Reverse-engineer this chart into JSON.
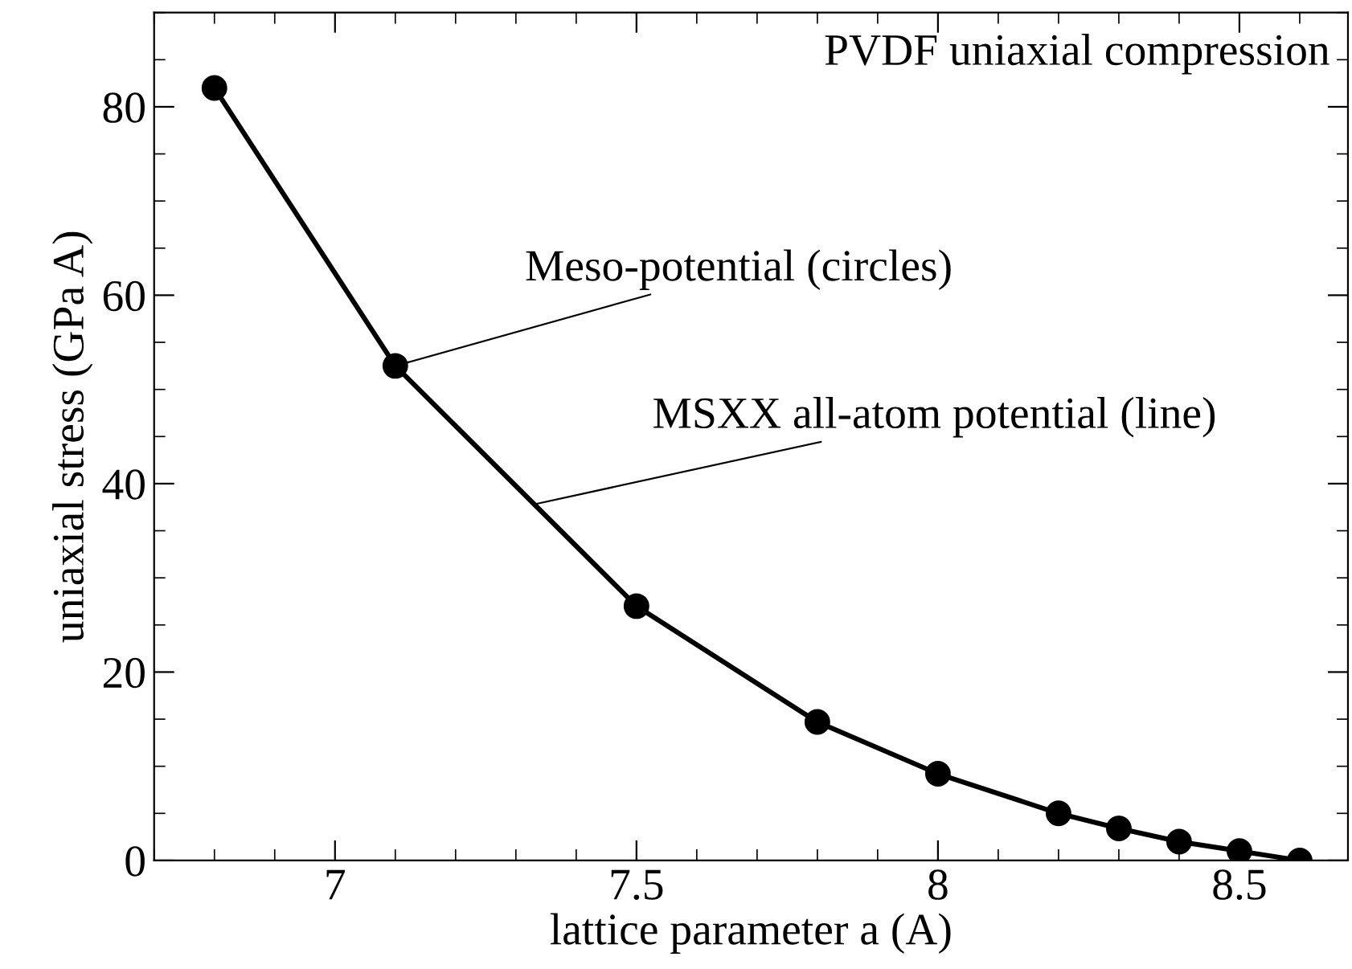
{
  "chart_data": {
    "type": "line",
    "xlabel": "lattice parameter a (A)",
    "ylabel": "uniaxial stress (GPa A)",
    "x": [
      6.8,
      7.1,
      7.5,
      7.8,
      8.0,
      8.2,
      8.3,
      8.4,
      8.5,
      8.6
    ],
    "series": [
      {
        "color": "#000000",
        "values": [
          82,
          52.5,
          27,
          14.7,
          9.2,
          5,
          3.4,
          2,
          1,
          0
        ]
      },
      {
        "type": "scatter",
        "color": "#000000",
        "marker": "circle",
        "values": [
          82,
          52.5,
          27,
          14.7,
          9.2,
          5,
          3.4,
          2,
          1,
          0
        ]
      }
    ],
    "annotations": [
      "PVDF uniaxial compression",
      {
        "text": "Meso-potential (circles)",
        "x": 7.1,
        "y": 52.5
      },
      {
        "text": "MSXX all-atom potential (line)",
        "x": 7.33,
        "y": 37.8
      }
    ],
    "xlim": [
      6.7,
      8.68
    ],
    "ylim": [
      0,
      90
    ],
    "xticks": [
      7,
      7.5,
      8,
      8.5
    ],
    "yticks": [
      0,
      20,
      40,
      60,
      80
    ],
    "grid": false,
    "legend": false
  }
}
